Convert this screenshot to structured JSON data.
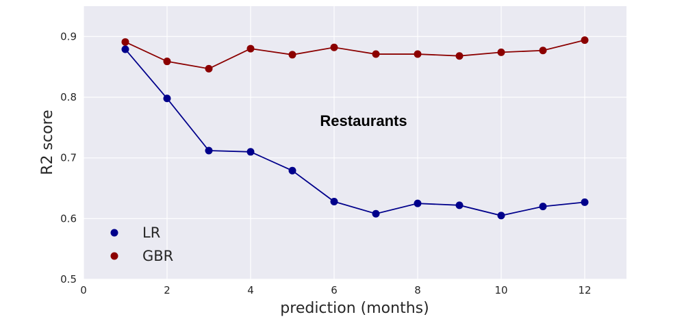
{
  "chart_data": {
    "type": "line",
    "title": "",
    "annotation": "Restaurants",
    "xlabel": "prediction (months)",
    "ylabel": "R2 score",
    "xlim": [
      0,
      13
    ],
    "ylim": [
      0.5,
      0.95
    ],
    "xticks": [
      0,
      2,
      4,
      6,
      8,
      10,
      12
    ],
    "yticks": [
      0.5,
      0.6,
      0.7,
      0.8,
      0.9
    ],
    "xtick_labels": [
      "0",
      "2",
      "4",
      "6",
      "8",
      "10",
      "12"
    ],
    "ytick_labels": [
      "0.5",
      "0.6",
      "0.7",
      "0.8",
      "0.9"
    ],
    "grid": true,
    "legend_position": "lower-left",
    "x": [
      1,
      2,
      3,
      4,
      5,
      6,
      7,
      8,
      9,
      10,
      11,
      12
    ],
    "series": [
      {
        "name": "LR",
        "color": "#00008b",
        "values": [
          0.879,
          0.798,
          0.712,
          0.71,
          0.679,
          0.628,
          0.608,
          0.625,
          0.622,
          0.605,
          0.62,
          0.627
        ]
      },
      {
        "name": "GBR",
        "color": "#8b0000",
        "values": [
          0.891,
          0.859,
          0.847,
          0.88,
          0.87,
          0.882,
          0.871,
          0.871,
          0.868,
          0.874,
          0.877,
          0.894
        ]
      }
    ],
    "background_color": "#eaeaf2",
    "grid_color": "#ffffff"
  }
}
